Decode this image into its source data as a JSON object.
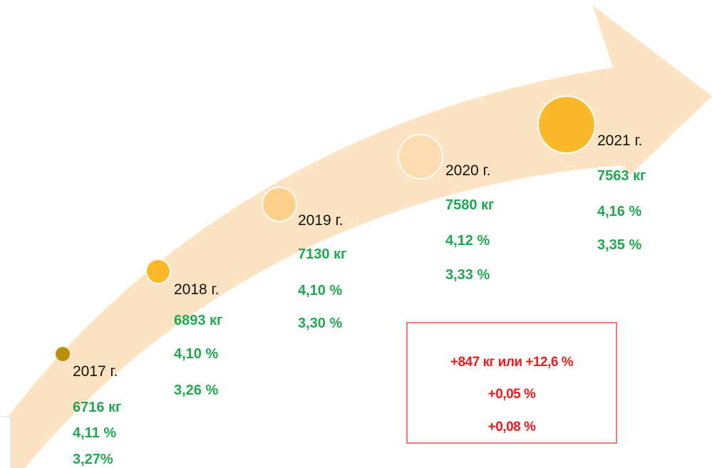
{
  "items": [
    {
      "year": "2017 г.",
      "lines": [
        "6716 кг",
        "4,11 %",
        "3,27%"
      ]
    },
    {
      "year": "2018 г.",
      "lines": [
        "6893 кг",
        "4,10 %",
        "3,26 %"
      ]
    },
    {
      "year": "2019 г.",
      "lines": [
        "7130 кг",
        "4,10 %",
        "3,30 %"
      ]
    },
    {
      "year": "2020 г.",
      "lines": [
        "7580 кг",
        "4,12 %",
        "3,33 %"
      ]
    },
    {
      "year": "2021 г.",
      "lines": [
        "7563 кг",
        "4,16 %",
        "3,35 %"
      ]
    }
  ],
  "summary": [
    "+847 кг или +12,6 %",
    "+0,05 %",
    "+0,08 %"
  ]
}
